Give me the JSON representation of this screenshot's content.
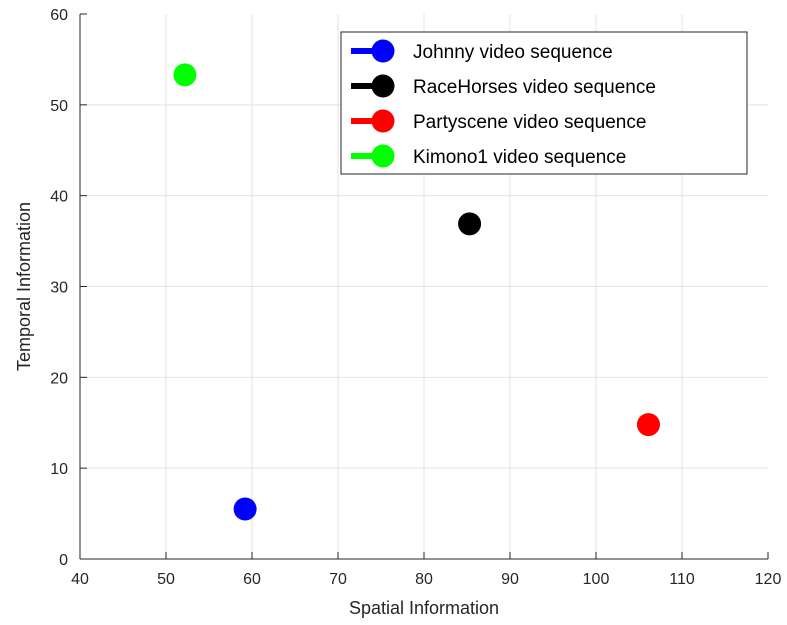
{
  "chart_data": {
    "type": "scatter",
    "xlabel": "Spatial Information",
    "ylabel": "Temporal Information",
    "xlim": [
      40,
      120
    ],
    "ylim": [
      0,
      60
    ],
    "xticks": [
      40,
      50,
      60,
      70,
      80,
      90,
      100,
      110,
      120
    ],
    "yticks": [
      0,
      10,
      20,
      30,
      40,
      50,
      60
    ],
    "grid": true,
    "legend_position": "top-right",
    "series": [
      {
        "name": "Johnny video sequence",
        "color": "#0000ff",
        "x": [
          59.2
        ],
        "y": [
          5.5
        ]
      },
      {
        "name": "RaceHorses video sequence",
        "color": "#000000",
        "x": [
          85.3
        ],
        "y": [
          36.9
        ]
      },
      {
        "name": "Partyscene video sequence",
        "color": "#ff0000",
        "x": [
          106.1
        ],
        "y": [
          14.8
        ]
      },
      {
        "name": "Kimono1 video sequence",
        "color": "#00ff00",
        "x": [
          52.2
        ],
        "y": [
          53.3
        ]
      }
    ]
  }
}
